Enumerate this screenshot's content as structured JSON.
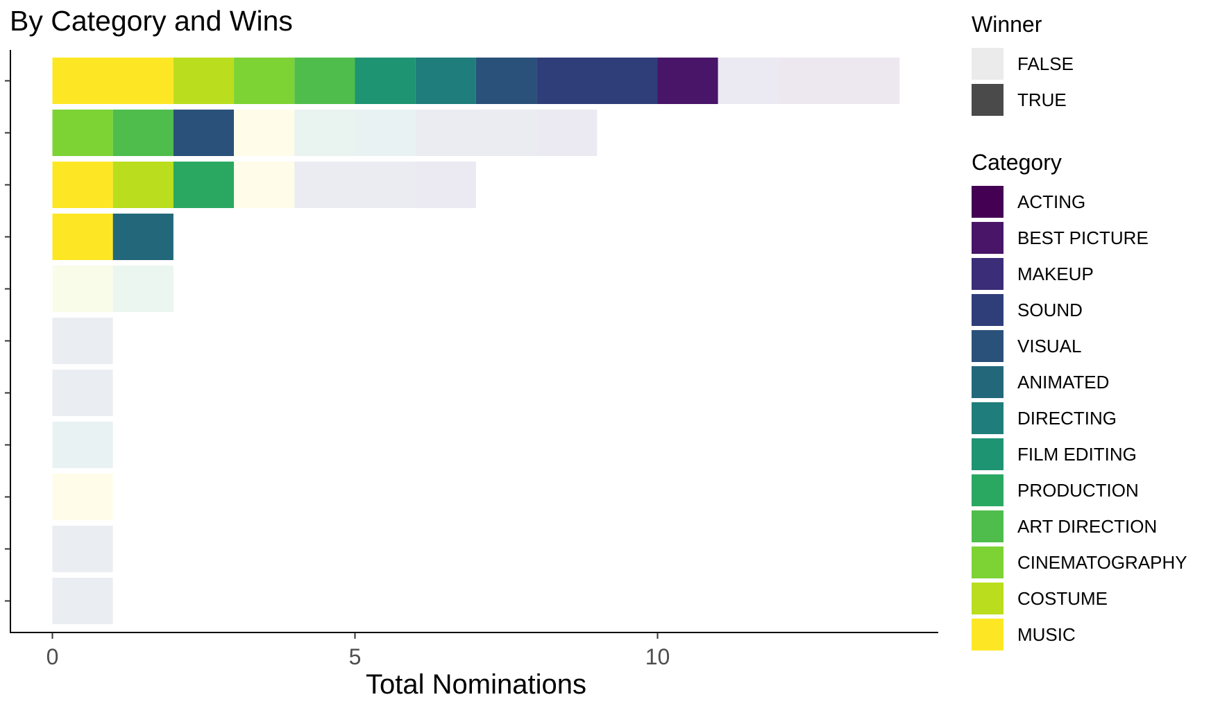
{
  "chart_data": {
    "type": "bar",
    "orientation": "horizontal",
    "stacked": true,
    "title": "By Category and Wins",
    "xlabel": "Total Nominations",
    "ylabel": "",
    "xlim": [
      0,
      14
    ],
    "x_ticks": [
      0,
      5,
      10
    ],
    "row_count": 11,
    "y_tick_labels_shown": false,
    "grid": false,
    "legend_position": "right",
    "legends": [
      {
        "title": "Winner",
        "entries": [
          {
            "label": "FALSE",
            "color": "#ebebeb"
          },
          {
            "label": "TRUE",
            "color": "#4a4a4a"
          }
        ]
      },
      {
        "title": "Category",
        "entries": [
          {
            "label": "ACTING",
            "color": "#440154"
          },
          {
            "label": "BEST PICTURE",
            "color": "#481568"
          },
          {
            "label": "MAKEUP",
            "color": "#3b2d78"
          },
          {
            "label": "SOUND",
            "color": "#2f3e79"
          },
          {
            "label": "VISUAL",
            "color": "#2a517a"
          },
          {
            "label": "ANIMATED",
            "color": "#22687a"
          },
          {
            "label": "DIRECTING",
            "color": "#1f7e7b"
          },
          {
            "label": "FILM EDITING",
            "color": "#1e9473"
          },
          {
            "label": "PRODUCTION",
            "color": "#2aa862"
          },
          {
            "label": "ART DIRECTION",
            "color": "#4fbd4c"
          },
          {
            "label": "CINEMATOGRAPHY",
            "color": "#7dd234"
          },
          {
            "label": "COSTUME",
            "color": "#bade1d"
          },
          {
            "label": "MUSIC",
            "color": "#fde725"
          }
        ]
      }
    ],
    "rows": [
      {
        "segments": [
          {
            "category": "MUSIC",
            "winner": true,
            "value": 2
          },
          {
            "category": "COSTUME",
            "winner": true,
            "value": 1
          },
          {
            "category": "CINEMATOGRAPHY",
            "winner": true,
            "value": 1
          },
          {
            "category": "ART DIRECTION",
            "winner": true,
            "value": 1
          },
          {
            "category": "FILM EDITING",
            "winner": true,
            "value": 1
          },
          {
            "category": "DIRECTING",
            "winner": true,
            "value": 1
          },
          {
            "category": "VISUAL",
            "winner": true,
            "value": 1
          },
          {
            "category": "SOUND",
            "winner": true,
            "value": 2
          },
          {
            "category": "BEST PICTURE",
            "winner": true,
            "value": 1
          },
          {
            "category": "MAKEUP",
            "winner": false,
            "value": 1
          },
          {
            "category": "BEST PICTURE",
            "winner": false,
            "value": 2
          }
        ]
      },
      {
        "segments": [
          {
            "category": "CINEMATOGRAPHY",
            "winner": true,
            "value": 1
          },
          {
            "category": "ART DIRECTION",
            "winner": true,
            "value": 1
          },
          {
            "category": "VISUAL",
            "winner": true,
            "value": 1
          },
          {
            "category": "MUSIC",
            "winner": false,
            "value": 1
          },
          {
            "category": "FILM EDITING",
            "winner": false,
            "value": 1
          },
          {
            "category": "DIRECTING",
            "winner": false,
            "value": 1
          },
          {
            "category": "SOUND",
            "winner": false,
            "value": 2
          },
          {
            "category": "MAKEUP",
            "winner": false,
            "value": 1
          }
        ]
      },
      {
        "segments": [
          {
            "category": "MUSIC",
            "winner": true,
            "value": 1
          },
          {
            "category": "COSTUME",
            "winner": true,
            "value": 1
          },
          {
            "category": "PRODUCTION",
            "winner": true,
            "value": 1
          },
          {
            "category": "MUSIC",
            "winner": false,
            "value": 1
          },
          {
            "category": "SOUND",
            "winner": false,
            "value": 2
          },
          {
            "category": "MAKEUP",
            "winner": false,
            "value": 1
          }
        ]
      },
      {
        "segments": [
          {
            "category": "MUSIC",
            "winner": true,
            "value": 1
          },
          {
            "category": "ANIMATED",
            "winner": true,
            "value": 1
          }
        ]
      },
      {
        "segments": [
          {
            "category": "COSTUME",
            "winner": false,
            "value": 1
          },
          {
            "category": "PRODUCTION",
            "winner": false,
            "value": 1
          }
        ]
      },
      {
        "segments": [
          {
            "category": "VISUAL",
            "winner": false,
            "value": 1
          }
        ]
      },
      {
        "segments": [
          {
            "category": "VISUAL",
            "winner": false,
            "value": 1
          }
        ]
      },
      {
        "segments": [
          {
            "category": "DIRECTING",
            "winner": false,
            "value": 1
          }
        ]
      },
      {
        "segments": [
          {
            "category": "MUSIC",
            "winner": false,
            "value": 1
          }
        ]
      },
      {
        "segments": [
          {
            "category": "VISUAL",
            "winner": false,
            "value": 1
          }
        ]
      },
      {
        "segments": [
          {
            "category": "VISUAL",
            "winner": false,
            "value": 1
          }
        ]
      }
    ]
  }
}
